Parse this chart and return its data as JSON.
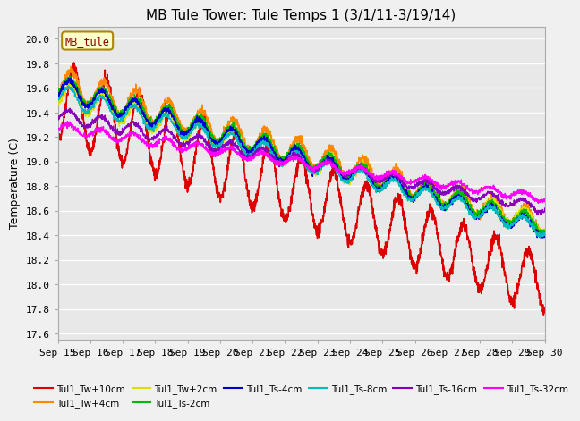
{
  "title": "MB Tule Tower: Tule Temps 1 (3/1/11-3/19/14)",
  "ylabel": "Temperature (C)",
  "ylim": [
    17.55,
    20.1
  ],
  "yticks": [
    17.6,
    17.8,
    18.0,
    18.2,
    18.4,
    18.6,
    18.8,
    19.0,
    19.2,
    19.4,
    19.6,
    19.8,
    20.0
  ],
  "xtick_labels": [
    "Sep 15",
    "Sep 16",
    "Sep 17",
    "Sep 18",
    "Sep 19",
    "Sep 20",
    "Sep 21",
    "Sep 22",
    "Sep 23",
    "Sep 24",
    "Sep 25",
    "Sep 26",
    "Sep 27",
    "Sep 28",
    "Sep 29",
    "Sep 30"
  ],
  "legend_box_label": "MB_tule",
  "series": [
    {
      "name": "Tul1_Tw+10cm",
      "color": "#dd0000"
    },
    {
      "name": "Tul1_Tw+4cm",
      "color": "#ff8800"
    },
    {
      "name": "Tul1_Tw+2cm",
      "color": "#dddd00"
    },
    {
      "name": "Tul1_Ts-2cm",
      "color": "#00bb00"
    },
    {
      "name": "Tul1_Ts-4cm",
      "color": "#0000cc"
    },
    {
      "name": "Tul1_Ts-8cm",
      "color": "#00bbbb"
    },
    {
      "name": "Tul1_Ts-16cm",
      "color": "#8800bb"
    },
    {
      "name": "Tul1_Ts-32cm",
      "color": "#ff00ff"
    }
  ],
  "bg_color": "#e8e8e8",
  "grid_color": "#ffffff"
}
